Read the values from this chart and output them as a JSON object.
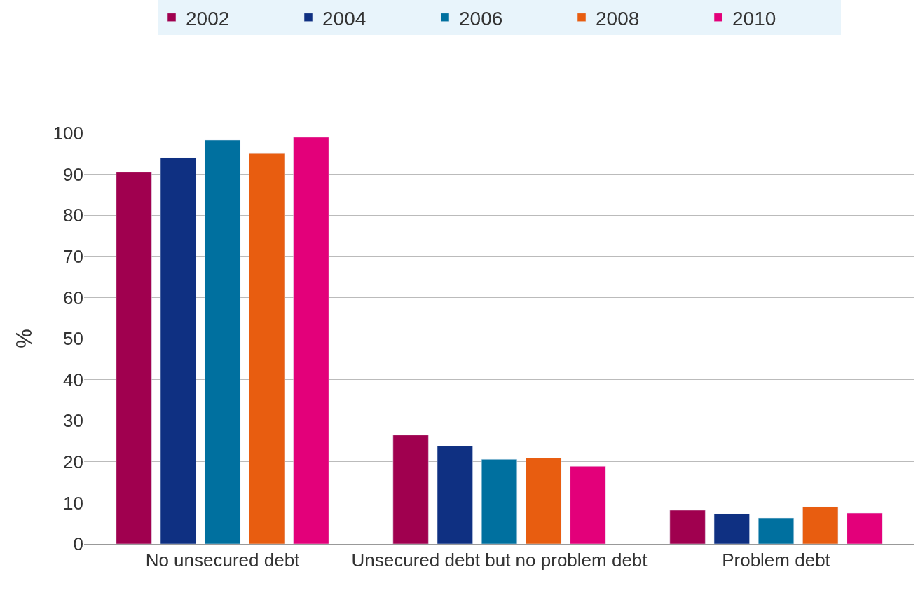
{
  "chart_data": {
    "type": "bar",
    "ylabel": "%",
    "categories": [
      "No unsecured debt",
      "Unsecured debt but no problem debt",
      "Problem debt"
    ],
    "series": [
      {
        "name": "2002",
        "color": "#a0004f",
        "values": [
          90.5,
          26.5,
          8.2
        ]
      },
      {
        "name": "2004",
        "color": "#0f3082",
        "values": [
          94.0,
          23.8,
          7.3
        ]
      },
      {
        "name": "2006",
        "color": "#00709f",
        "values": [
          98.3,
          20.6,
          6.3
        ]
      },
      {
        "name": "2008",
        "color": "#e85d10",
        "values": [
          95.2,
          20.9,
          9.0
        ]
      },
      {
        "name": "2010",
        "color": "#e3007a",
        "values": [
          99.0,
          18.9,
          7.5
        ]
      }
    ],
    "ylim": [
      0,
      100
    ],
    "yticks": [
      0,
      10,
      20,
      30,
      40,
      50,
      60,
      70,
      80,
      90,
      100
    ],
    "grid": "y",
    "legend": "top"
  }
}
